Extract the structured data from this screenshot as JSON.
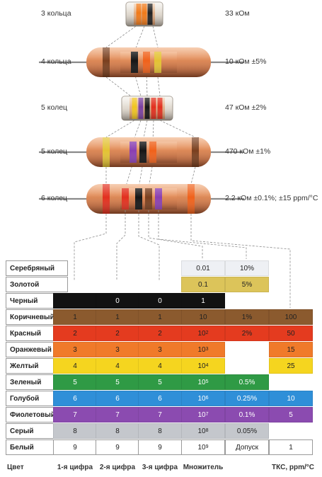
{
  "resistors": [
    {
      "label": "3 кольца",
      "value": "33 кОм",
      "style": "smd",
      "colors": [
        "#f07a1a",
        "#f07a1a",
        "#222222"
      ]
    },
    {
      "label": "4 кольца",
      "value": "10 кОм ±5%",
      "style": "axial",
      "colors": [
        "#7a3f1e",
        "#151515",
        "#f0611a",
        "#e3c233"
      ]
    },
    {
      "label": "5 колец",
      "value": "47 кОм ±2%",
      "style": "smd",
      "colors": [
        "#f0c420",
        "#7a3fa0",
        "#151515",
        "#e2301e",
        "#e2301e"
      ]
    },
    {
      "label": "5 колец",
      "value": "470 кОм ±1%",
      "style": "axial",
      "colors": [
        "#e3c233",
        "#8a3fb0",
        "#151515",
        "#f0611a",
        "#7a3f1e"
      ]
    },
    {
      "label": "6 колец",
      "value": "2.2 кОм ±0.1%; ±15 ppm/°C",
      "style": "axial",
      "colors": [
        "#e2301e",
        "#e2301e",
        "#151515",
        "#7a3f1e",
        "#8a3fb0",
        "#f0611a"
      ]
    }
  ],
  "table": {
    "rows": [
      {
        "name": "Серебряный",
        "d1": "",
        "d2": "",
        "d3": "",
        "mult": "0.01",
        "tol": "10%",
        "tkc": "",
        "color": "",
        "text": "#222222"
      },
      {
        "name": "Золотой",
        "d1": "",
        "d2": "",
        "d3": "",
        "mult": "0.1",
        "tol": "5%",
        "tkc": "",
        "color": "#dcc45a",
        "text": "#222222"
      },
      {
        "name": "Черный",
        "d1": "",
        "d2": "0",
        "d3": "0",
        "mult": "1",
        "tol": "",
        "tkc": "",
        "color": "#121212",
        "text": "#ffffff"
      },
      {
        "name": "Коричневый",
        "d1": "1",
        "d2": "1",
        "d3": "1",
        "mult": "10",
        "tol": "1%",
        "tkc": "100",
        "color": "#8b5a2e",
        "text": "#222222"
      },
      {
        "name": "Красный",
        "d1": "2",
        "d2": "2",
        "d3": "2",
        "mult": "10",
        "multExp": "2",
        "tol": "2%",
        "tkc": "50",
        "color": "#e43b1f",
        "text": "#222222"
      },
      {
        "name": "Оранжевый",
        "d1": "3",
        "d2": "3",
        "d3": "3",
        "mult": "10",
        "multExp": "3",
        "tol": "",
        "tkc": "15",
        "color": "#f07a2a",
        "text": "#222222"
      },
      {
        "name": "Желтый",
        "d1": "4",
        "d2": "4",
        "d3": "4",
        "mult": "10",
        "multExp": "4",
        "tol": "",
        "tkc": "25",
        "color": "#f5d51f",
        "text": "#222222"
      },
      {
        "name": "Зеленый",
        "d1": "5",
        "d2": "5",
        "d3": "5",
        "mult": "10",
        "multExp": "5",
        "tol": "0.5%",
        "tkc": "",
        "color": "#2f9a45",
        "text": "#ffffff"
      },
      {
        "name": "Голубой",
        "d1": "6",
        "d2": "6",
        "d3": "6",
        "mult": "10",
        "multExp": "6",
        "tol": "0.25%",
        "tkc": "10",
        "color": "#2f8fd8",
        "text": "#ffffff"
      },
      {
        "name": "Фиолетовый",
        "d1": "7",
        "d2": "7",
        "d3": "7",
        "mult": "10",
        "multExp": "7",
        "tol": "0.1%",
        "tkc": "5",
        "color": "#8b4bb0",
        "text": "#ffffff"
      },
      {
        "name": "Серый",
        "d1": "8",
        "d2": "8",
        "d3": "8",
        "mult": "10",
        "multExp": "8",
        "tol": "0.05%",
        "tkc": "",
        "color": "#c4c7cc",
        "text": "#222222"
      },
      {
        "name": "Белый",
        "d1": "9",
        "d2": "9",
        "d3": "9",
        "mult": "10",
        "multExp": "9",
        "tol": "Допуск",
        "tkc": "1",
        "color": "#ffffff",
        "text": "#222222"
      }
    ],
    "silver_fill": "#eef0f4",
    "columns": [
      "Цвет",
      "1-я цифра",
      "2-я цифра",
      "3-я цифра",
      "Множитель",
      "ТКС, ppm/°C"
    ]
  }
}
